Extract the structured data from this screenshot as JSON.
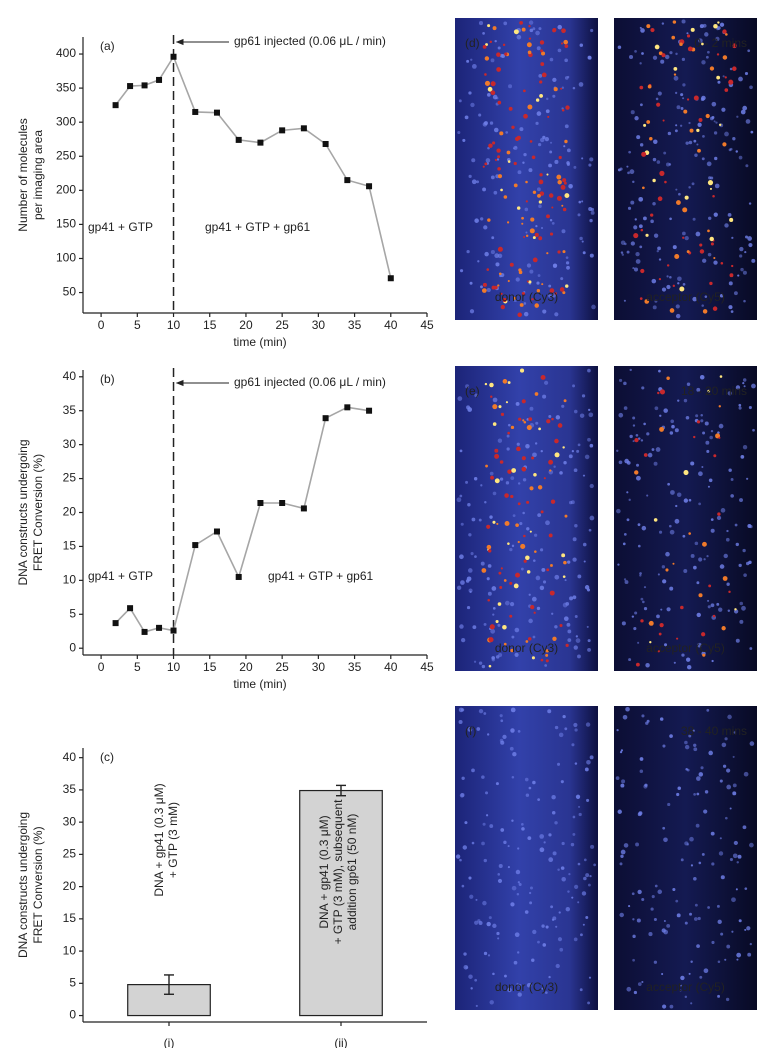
{
  "chart_data": [
    {
      "type": "line",
      "panel_label": "(a)",
      "ylabel": [
        "Number of molecules",
        "per imaging area"
      ],
      "xlabel": "time (min)",
      "x": [
        2,
        4,
        6,
        8,
        10,
        13,
        16,
        19,
        22,
        25,
        28,
        31,
        34,
        37,
        40
      ],
      "series": [
        {
          "color": "#a6a6a6",
          "marker_color": "#111111",
          "values": [
            325,
            353,
            354,
            362,
            396,
            315,
            314,
            274,
            270,
            288,
            291,
            268,
            215,
            206,
            71
          ]
        }
      ],
      "xlim": [
        -2.5,
        45
      ],
      "xticks": [
        0,
        5,
        10,
        15,
        20,
        25,
        30,
        35,
        40,
        45
      ],
      "ylim": [
        20,
        425
      ],
      "yticks": [
        50,
        100,
        150,
        200,
        250,
        300,
        350,
        400
      ],
      "vline": 10,
      "annotations": [
        "gp61 injected (0.06 μL / min)",
        "gp41 + GTP",
        "gp41 + GTP + gp61"
      ]
    },
    {
      "type": "line",
      "panel_label": "(b)",
      "ylabel": [
        "DNA constructs undergoing",
        "FRET Conversion (%)"
      ],
      "xlabel": "time (min)",
      "x": [
        2,
        4,
        6,
        8,
        10,
        13,
        16,
        19,
        22,
        25,
        28,
        31,
        34,
        37
      ],
      "series": [
        {
          "color": "#a6a6a6",
          "marker_color": "#111111",
          "values": [
            3.7,
            5.9,
            2.4,
            3.0,
            2.6,
            15.2,
            17.2,
            10.5,
            21.4,
            21.4,
            20.6,
            33.9,
            35.5,
            35.0
          ]
        }
      ],
      "xlim": [
        -2.5,
        45
      ],
      "xticks": [
        0,
        5,
        10,
        15,
        20,
        25,
        30,
        35,
        40,
        45
      ],
      "ylim": [
        -1,
        41
      ],
      "yticks": [
        0,
        5,
        10,
        15,
        20,
        25,
        30,
        35,
        40
      ],
      "vline": 10,
      "annotations": [
        "gp61 injected (0.06 μL / min)",
        "gp41 + GTP",
        "gp41 + GTP + gp61"
      ]
    },
    {
      "type": "bar",
      "panel_label": "(c)",
      "ylabel": [
        "DNA constructs undergoing",
        "FRET Conversion (%)"
      ],
      "categories": [
        "(i)",
        "(ii)"
      ],
      "values": [
        4.8,
        34.9
      ],
      "errors": [
        1.5,
        0.8
      ],
      "color": "#d3d3d3",
      "ylim": [
        -1,
        41.5
      ],
      "yticks": [
        0,
        5,
        10,
        15,
        20,
        25,
        30,
        35,
        40
      ],
      "bar_notes": [
        [
          "DNA + gp41 (0.3 μM)",
          "+ GTP (3 mM)"
        ],
        [
          "DNA + gp41 (0.3 μM)",
          "+ GTP (3 mM), subsequent",
          "addition gp61 (50 nM)"
        ]
      ]
    }
  ],
  "panels": [
    {
      "label": "(d)",
      "time": "0 - 2 mins",
      "left": "donor (Cy3)",
      "right": "acceptor (Cy5)"
    },
    {
      "label": "(e)",
      "time": "18 - 20 mins",
      "left": "donor (Cy3)",
      "right": "acceptor (Cy5)"
    },
    {
      "label": "(f)",
      "time": "38 - 40 mins",
      "left": "donor (Cy3)",
      "right": "acceptor (Cy5)"
    }
  ]
}
